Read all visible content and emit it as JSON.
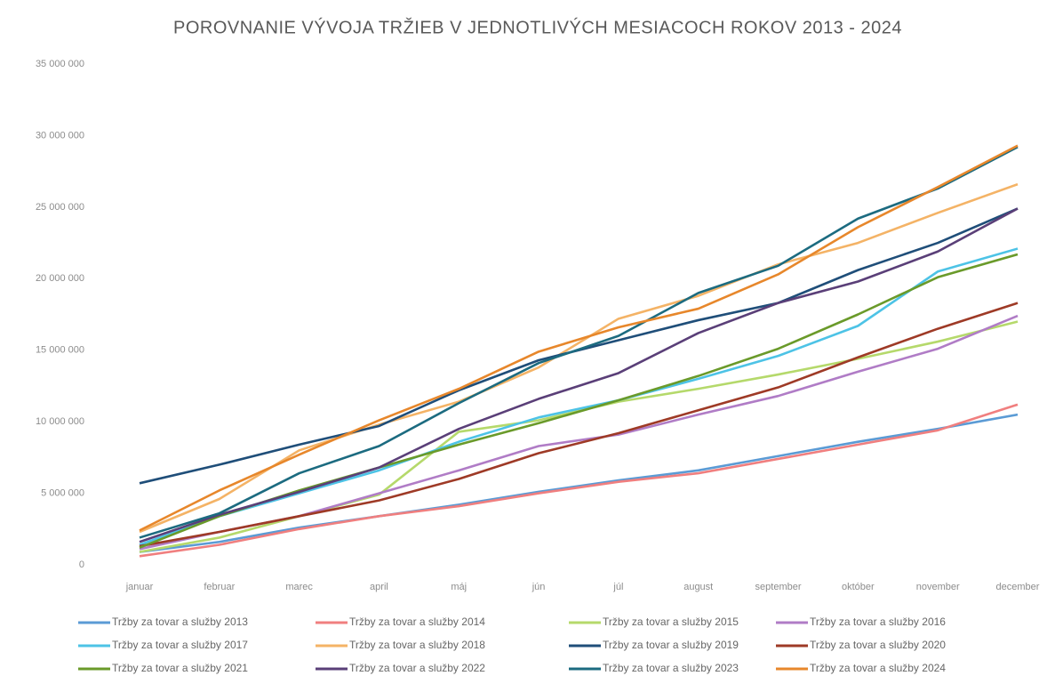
{
  "chart_data": {
    "type": "line",
    "title": "POROVNANIE VÝVOJA TRŽIEB V JEDNOTLIVÝCH MESIACOCH ROKOV 2013 - 2024",
    "categories": [
      "januar",
      "februar",
      "marec",
      "april",
      "máj",
      "jún",
      "júl",
      "august",
      "september",
      "október",
      "november",
      "december"
    ],
    "ylim": [
      0,
      35000000
    ],
    "yticks": [
      0,
      {
        "value": 5000000,
        "label": "5 000 000"
      },
      {
        "value": 10000000,
        "label": "10 000 000"
      },
      {
        "value": 15000000,
        "label": "15 000 000"
      },
      {
        "value": 20000000,
        "label": "20 000 000"
      },
      {
        "value": 25000000,
        "label": "25 000 000"
      },
      {
        "value": 30000000,
        "label": "30 000 000"
      },
      {
        "value": 35000000,
        "label": "35 000 000"
      }
    ],
    "grid": false,
    "legend": "bottom",
    "series": [
      {
        "name": "Tržby za tovar a služby 2013",
        "color": "#5b9bd5",
        "values": [
          900000,
          1600000,
          2600000,
          3400000,
          4200000,
          5100000,
          5900000,
          6600000,
          7600000,
          8600000,
          9500000,
          10500000
        ]
      },
      {
        "name": "Tržby za tovar a služby 2014",
        "color": "#f07f7f",
        "values": [
          600000,
          1400000,
          2500000,
          3400000,
          4100000,
          5000000,
          5800000,
          6400000,
          7400000,
          8400000,
          9400000,
          11200000
        ]
      },
      {
        "name": "Tržby za tovar a služby 2015",
        "color": "#b5d96b",
        "values": [
          900000,
          1900000,
          3400000,
          4900000,
          9300000,
          10100000,
          11400000,
          12300000,
          13300000,
          14400000,
          15600000,
          17000000
        ]
      },
      {
        "name": "Tržby za tovar a služby 2016",
        "color": "#b07cc6",
        "values": [
          1100000,
          2300000,
          3400000,
          5000000,
          6600000,
          8300000,
          9100000,
          10500000,
          11800000,
          13500000,
          15100000,
          17400000
        ]
      },
      {
        "name": "Tržby za tovar a služby 2017",
        "color": "#4dc3e6",
        "values": [
          1400000,
          3400000,
          5000000,
          6600000,
          8600000,
          10300000,
          11500000,
          13000000,
          14600000,
          16700000,
          20500000,
          22100000
        ]
      },
      {
        "name": "Tržby za tovar a služby 2018",
        "color": "#f4b366",
        "values": [
          2300000,
          4600000,
          8000000,
          9800000,
          11400000,
          13800000,
          17200000,
          18800000,
          21000000,
          22500000,
          24600000,
          26600000
        ]
      },
      {
        "name": "Tržby za tovar a služby 2019",
        "color": "#1f4e79",
        "values": [
          5700000,
          7000000,
          8400000,
          9700000,
          12200000,
          14300000,
          15700000,
          17100000,
          18300000,
          20600000,
          22500000,
          24900000
        ]
      },
      {
        "name": "Tržby za tovar a služby 2020",
        "color": "#9e3a26",
        "values": [
          1300000,
          2300000,
          3400000,
          4500000,
          6000000,
          7800000,
          9200000,
          10800000,
          12400000,
          14500000,
          16500000,
          18300000
        ]
      },
      {
        "name": "Tržby za tovar a služby 2021",
        "color": "#6a9a2a",
        "values": [
          1200000,
          3400000,
          5200000,
          6800000,
          8400000,
          9900000,
          11500000,
          13200000,
          15100000,
          17500000,
          20100000,
          21700000
        ]
      },
      {
        "name": "Tržby za tovar a služby 2022",
        "color": "#5a3f78",
        "values": [
          1600000,
          3500000,
          5100000,
          6800000,
          9500000,
          11600000,
          13400000,
          16200000,
          18300000,
          19800000,
          21900000,
          24900000
        ]
      },
      {
        "name": "Tržby za tovar a služby 2023",
        "color": "#1c6b80",
        "values": [
          1900000,
          3600000,
          6400000,
          8300000,
          11300000,
          14100000,
          16000000,
          19000000,
          20900000,
          24200000,
          26300000,
          29200000
        ]
      },
      {
        "name": "Tržby za tovar a služby 2024",
        "color": "#e7872b",
        "values": [
          2400000,
          5200000,
          7700000,
          10100000,
          12300000,
          14900000,
          16600000,
          17900000,
          20300000,
          23600000,
          26400000,
          29300000
        ]
      }
    ]
  }
}
